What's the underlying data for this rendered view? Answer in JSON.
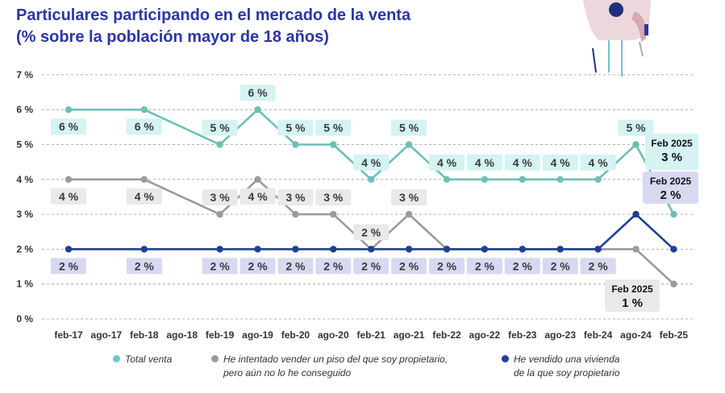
{
  "title": {
    "line1": "Particulares participando en el mercado de la venta",
    "line2": "(% sobre la población mayor de 18 años)"
  },
  "chart_data": {
    "type": "line",
    "categories": [
      "feb-17",
      "ago-17",
      "feb-18",
      "ago-18",
      "feb-19",
      "ago-19",
      "feb-20",
      "ago-20",
      "feb-21",
      "ago-21",
      "feb-22",
      "ago-22",
      "feb-23",
      "ago-23",
      "feb-24",
      "ago-24",
      "feb-25"
    ],
    "ylim": [
      0,
      7
    ],
    "yticks": [
      "0 %",
      "1 %",
      "2 %",
      "3 %",
      "4 %",
      "5 %",
      "6 %",
      "7 %"
    ],
    "grid": true,
    "legend_position": "bottom",
    "series": [
      {
        "name": "Total venta",
        "color": "#6dbfb6",
        "label_bg": "#d5f3f3",
        "values": [
          6,
          null,
          6,
          null,
          5,
          6,
          5,
          5,
          4,
          5,
          4,
          4,
          4,
          4,
          4,
          5,
          3
        ],
        "labels": [
          "6 %",
          null,
          "6 %",
          null,
          "5 %",
          "6 %",
          "5 %",
          "5 %",
          "4 %",
          "5 %",
          "4 %",
          "4 %",
          "4 %",
          "4 %",
          "4 %",
          "5 %",
          null
        ],
        "label_side": [
          "below",
          null,
          "below",
          null,
          "above",
          "above",
          "above",
          "above",
          "above",
          "above",
          "above",
          "above",
          "above",
          "above",
          "above",
          "above",
          null
        ]
      },
      {
        "name": "He intentado vender un piso del que soy propietario, pero aún no lo he conseguido",
        "legend_line1": "He intentado vender un piso del que soy propietario,",
        "legend_line2": "pero aún no lo he conseguido",
        "color": "#9a9a9a",
        "label_bg": "#e9e9ea",
        "values": [
          4,
          null,
          4,
          null,
          3,
          4,
          3,
          3,
          2,
          3,
          2,
          2,
          2,
          2,
          2,
          2,
          1
        ],
        "labels": [
          "4 %",
          null,
          "4 %",
          null,
          "3 %",
          "4 %",
          "3 %",
          "3 %",
          "2 %",
          "3 %",
          "2 %",
          "2 %",
          "2 %",
          "2 %",
          "2 %",
          null,
          null
        ],
        "label_side": [
          "below",
          null,
          "below",
          null,
          "above",
          "below",
          "above",
          "above",
          "above",
          "above",
          "below",
          "below",
          "below",
          "below",
          "below",
          null,
          null
        ]
      },
      {
        "name": "He vendido una vivienda de la que soy propietario",
        "legend_line1": "He vendido una vivienda",
        "legend_line2": "de la que soy propietario",
        "color": "#1f3f94",
        "label_bg": "#d8d9f1",
        "values": [
          2,
          null,
          2,
          null,
          2,
          2,
          2,
          2,
          2,
          2,
          2,
          2,
          2,
          2,
          2,
          3,
          2
        ],
        "labels": [
          "2 %",
          null,
          "2 %",
          null,
          "2 %",
          "2 %",
          "2 %",
          "2 %",
          "2 %",
          "2 %",
          "2 %",
          "2 %",
          "2 %",
          "2 %",
          "2 %",
          null,
          null
        ],
        "label_side": [
          "below",
          null,
          "below",
          null,
          "below",
          "below",
          "below",
          "below",
          "below",
          "below",
          "below",
          "below",
          "below",
          "below",
          "below",
          null,
          null
        ]
      }
    ],
    "annotations": [
      {
        "series": 0,
        "title": "Feb 2025",
        "value": "3 %"
      },
      {
        "series": 2,
        "title": "Feb 2025",
        "value": "2 %"
      },
      {
        "series": 1,
        "title": "Feb 2025",
        "value": "1 %"
      }
    ]
  }
}
